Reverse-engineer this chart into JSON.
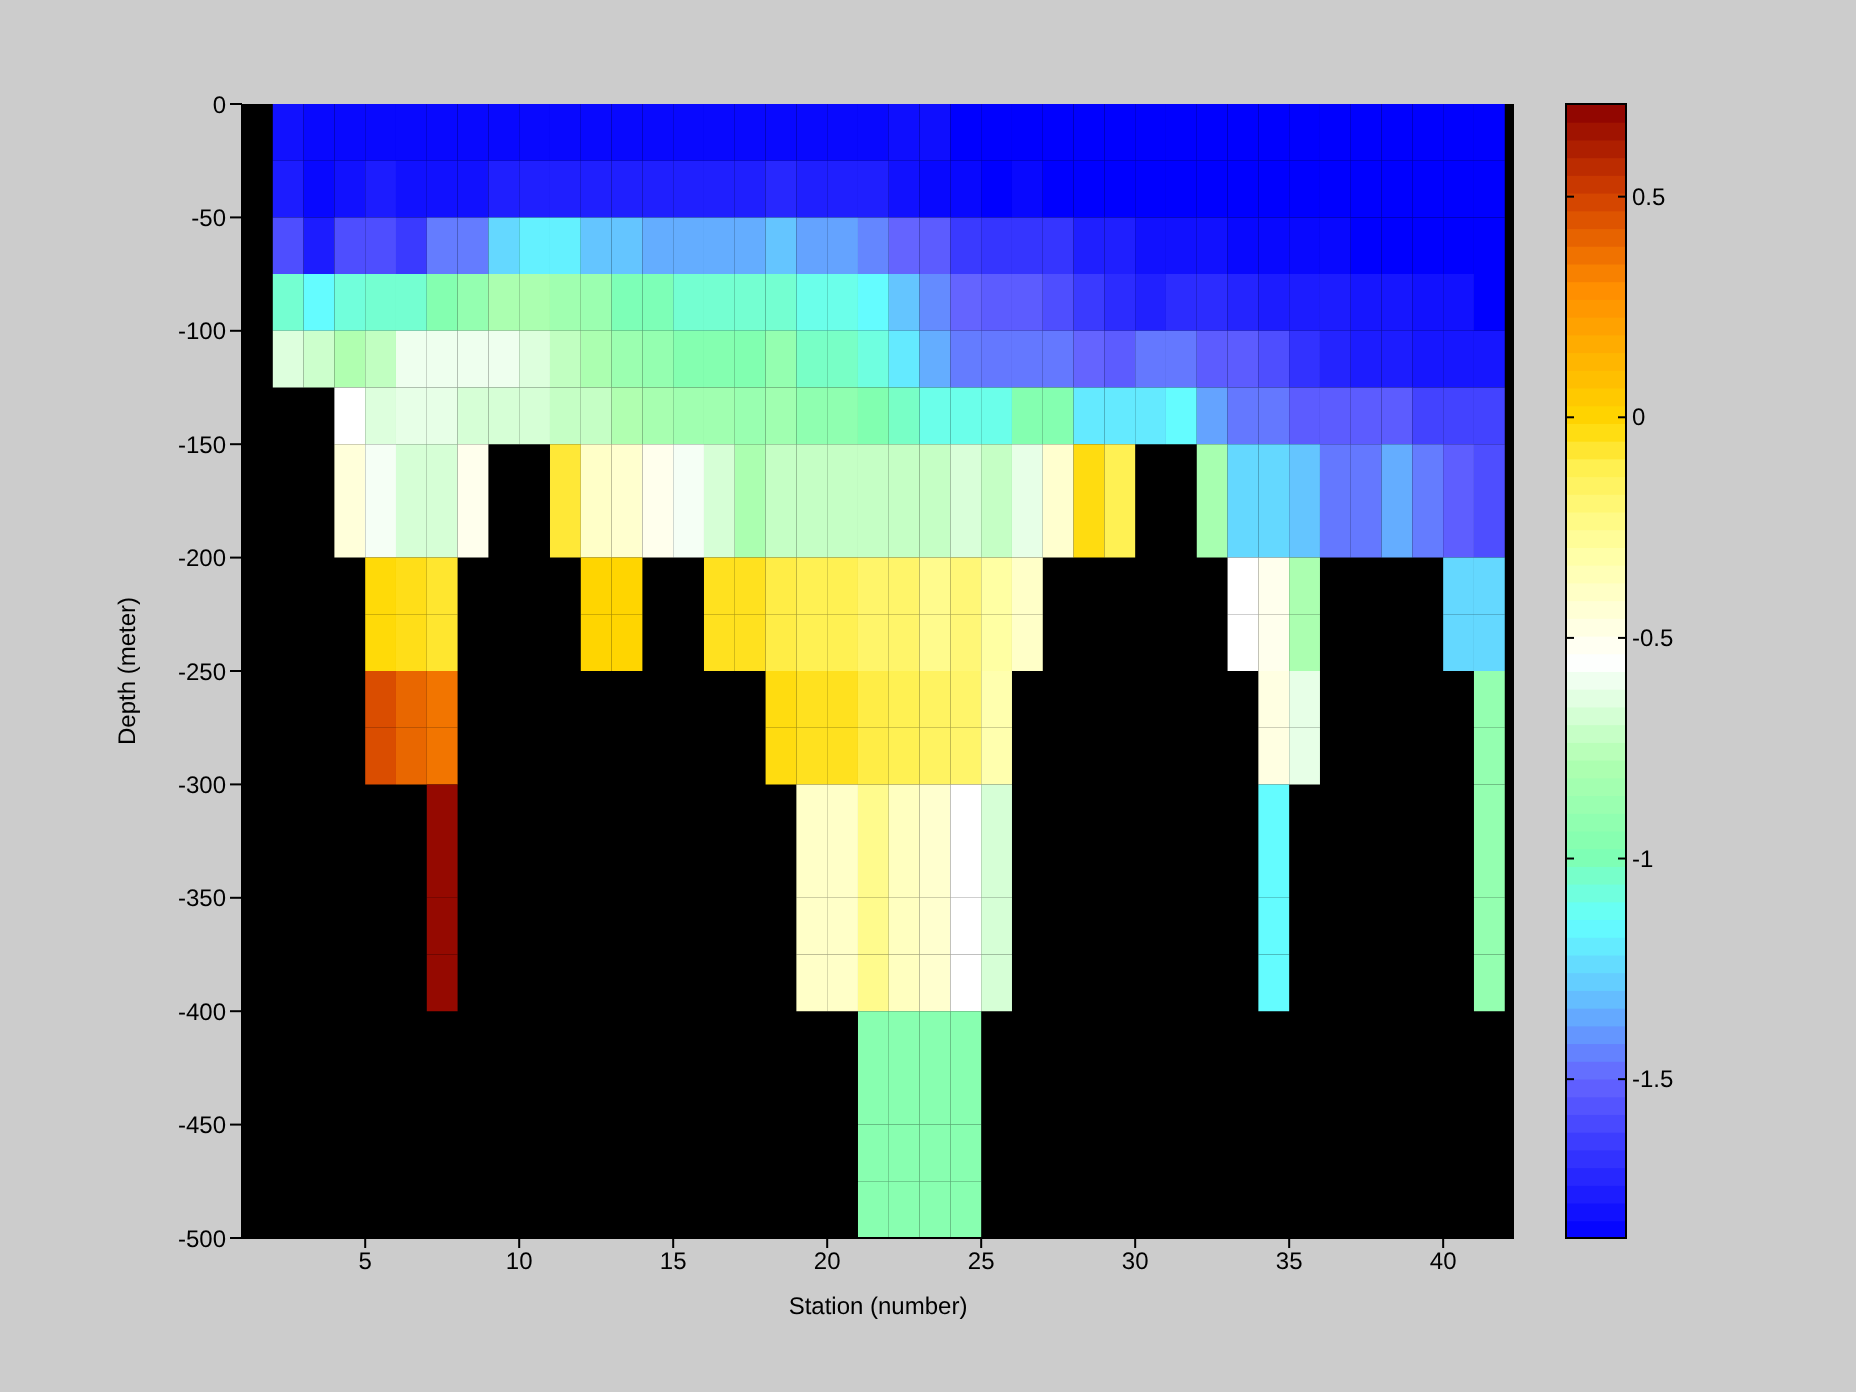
{
  "chart_data": {
    "type": "heatmap",
    "xlabel": "Station (number)",
    "ylabel": "Depth (meter)",
    "x": [
      2.5,
      3.5,
      4.5,
      5.5,
      6.5,
      7.5,
      8.5,
      9.5,
      10.5,
      11.5,
      12.5,
      13.5,
      14.5,
      15.5,
      16.5,
      17.5,
      18.5,
      19.5,
      20.5,
      21.5,
      22.5,
      23.5,
      24.5,
      25.5,
      26.5,
      27.5,
      28.5,
      29.5,
      30.5,
      31.5,
      32.5,
      33.5,
      34.5,
      35.5,
      36.5,
      37.5,
      38.5,
      39.5,
      40.5,
      41.5
    ],
    "xlim": [
      1,
      42.3
    ],
    "xticks": [
      5,
      10,
      15,
      20,
      25,
      30,
      35,
      40
    ],
    "ylim": [
      -500,
      0
    ],
    "yticks": [
      -500,
      -450,
      -400,
      -350,
      -300,
      -250,
      -200,
      -150,
      -100,
      -50,
      0
    ],
    "clim": [
      -1.86,
      0.71
    ],
    "cticks": [
      -1.5,
      -1,
      -0.5,
      0,
      0.5
    ],
    "cells": [
      [
        -1.8,
        -1.83,
        -1.83,
        -1.83,
        -1.83,
        -1.83,
        -1.83,
        -1.83,
        -1.83,
        -1.83,
        -1.83,
        -1.83,
        -1.83,
        -1.83,
        -1.83,
        -1.83,
        -1.83,
        -1.83,
        -1.83,
        -1.83,
        -1.81,
        -1.81,
        -1.86,
        -1.86,
        -1.86,
        -1.86,
        -1.86,
        -1.86,
        -1.86,
        -1.86,
        -1.86,
        -1.86,
        -1.86,
        -1.86,
        -1.86,
        -1.86,
        -1.86,
        -1.86,
        -1.86,
        -1.86
      ],
      [
        -1.76,
        -1.83,
        -1.8,
        -1.76,
        -1.8,
        -1.8,
        -1.8,
        -1.75,
        -1.75,
        -1.75,
        -1.75,
        -1.75,
        -1.75,
        -1.75,
        -1.75,
        -1.75,
        -1.72,
        -1.75,
        -1.75,
        -1.75,
        -1.8,
        -1.83,
        -1.83,
        -1.86,
        -1.83,
        -1.86,
        -1.86,
        -1.86,
        -1.86,
        -1.86,
        -1.86,
        -1.86,
        -1.86,
        -1.86,
        -1.86,
        -1.86,
        -1.86,
        -1.86,
        -1.86,
        -1.86
      ],
      [
        -1.58,
        -1.76,
        -1.58,
        -1.58,
        -1.65,
        -1.45,
        -1.45,
        -1.25,
        -1.18,
        -1.18,
        -1.3,
        -1.3,
        -1.35,
        -1.35,
        -1.35,
        -1.35,
        -1.3,
        -1.37,
        -1.37,
        -1.43,
        -1.5,
        -1.53,
        -1.65,
        -1.67,
        -1.67,
        -1.67,
        -1.75,
        -1.75,
        -1.8,
        -1.8,
        -1.8,
        -1.83,
        -1.83,
        -1.83,
        -1.83,
        -1.86,
        -1.86,
        -1.86,
        -1.86,
        -1.86
      ],
      [
        -1.05,
        -1.15,
        -1.07,
        -1.05,
        -1.05,
        -0.97,
        -0.9,
        -0.8,
        -0.8,
        -0.85,
        -0.87,
        -1,
        -1,
        -1.05,
        -1.05,
        -1.05,
        -1.05,
        -1.1,
        -1.1,
        -1.15,
        -1.3,
        -1.42,
        -1.5,
        -1.53,
        -1.53,
        -1.58,
        -1.65,
        -1.7,
        -1.74,
        -1.7,
        -1.7,
        -1.73,
        -1.76,
        -1.76,
        -1.76,
        -1.78,
        -1.78,
        -1.8,
        -1.8,
        -1.86
      ],
      [
        -0.65,
        -0.7,
        -0.78,
        -0.73,
        -0.6,
        -0.6,
        -0.6,
        -0.6,
        -0.65,
        -0.73,
        -0.8,
        -0.87,
        -0.9,
        -0.97,
        -0.97,
        -0.98,
        -0.9,
        -1.03,
        -1.03,
        -1.08,
        -1.2,
        -1.35,
        -1.45,
        -1.46,
        -1.46,
        -1.46,
        -1.5,
        -1.53,
        -1.46,
        -1.46,
        -1.53,
        -1.53,
        -1.58,
        -1.68,
        -1.73,
        -1.76,
        -1.76,
        -1.78,
        -1.78,
        -1.78
      ],
      [
        null,
        null,
        -0.55,
        -0.65,
        -0.62,
        -0.62,
        -0.67,
        -0.67,
        -0.67,
        -0.72,
        -0.72,
        -0.78,
        -0.82,
        -0.85,
        -0.85,
        -0.88,
        -0.85,
        -0.92,
        -0.92,
        -0.98,
        -1.03,
        -1.1,
        -1.1,
        -1.1,
        -0.97,
        -0.97,
        -1.2,
        -1.2,
        -1.2,
        -1.15,
        -1.37,
        -1.46,
        -1.46,
        -1.53,
        -1.53,
        -1.53,
        -1.53,
        -1.62,
        -1.62,
        -1.62
      ],
      [
        null,
        null,
        -0.45,
        -0.58,
        -0.67,
        -0.67,
        -0.5,
        null,
        null,
        -0.08,
        -0.4,
        -0.42,
        -0.5,
        -0.58,
        -0.67,
        -0.8,
        -0.72,
        -0.72,
        -0.72,
        -0.72,
        -0.72,
        -0.72,
        -0.66,
        -0.72,
        -0.62,
        -0.42,
        -0.03,
        -0.12,
        null,
        null,
        -0.82,
        -1.25,
        -1.25,
        -1.3,
        -1.46,
        -1.46,
        -1.35,
        -1.45,
        -1.52,
        -1.58
      ],
      [
        null,
        null,
        -0.45,
        -0.58,
        -0.67,
        -0.67,
        -0.5,
        null,
        null,
        -0.08,
        -0.4,
        -0.42,
        -0.5,
        -0.58,
        -0.67,
        -0.8,
        -0.72,
        -0.72,
        -0.72,
        -0.72,
        -0.72,
        -0.72,
        -0.66,
        -0.72,
        -0.62,
        -0.42,
        -0.03,
        -0.12,
        null,
        null,
        -0.82,
        -1.25,
        -1.25,
        -1.3,
        -1.46,
        -1.46,
        -1.35,
        -1.45,
        -1.52,
        -1.58
      ],
      [
        null,
        null,
        null,
        -0.02,
        -0.04,
        -0.07,
        null,
        null,
        null,
        null,
        0,
        0,
        null,
        null,
        -0.05,
        -0.05,
        -0.1,
        -0.12,
        -0.12,
        -0.17,
        -0.17,
        -0.25,
        -0.2,
        -0.3,
        -0.4,
        null,
        null,
        null,
        null,
        null,
        null,
        -0.55,
        -0.5,
        -0.8,
        null,
        null,
        null,
        null,
        -1.25,
        -1.25
      ],
      [
        null,
        null,
        null,
        -0.02,
        -0.04,
        -0.07,
        null,
        null,
        null,
        null,
        0,
        0,
        null,
        null,
        -0.05,
        -0.05,
        -0.1,
        -0.12,
        -0.12,
        -0.17,
        -0.17,
        -0.25,
        -0.2,
        -0.3,
        -0.4,
        null,
        null,
        null,
        null,
        null,
        null,
        -0.55,
        -0.5,
        -0.8,
        null,
        null,
        null,
        null,
        -1.25,
        -1.25
      ],
      [
        null,
        null,
        null,
        0.47,
        0.4,
        0.36,
        null,
        null,
        null,
        null,
        null,
        null,
        null,
        null,
        null,
        null,
        -0.03,
        -0.05,
        -0.05,
        -0.1,
        -0.12,
        -0.15,
        -0.17,
        -0.33,
        null,
        null,
        null,
        null,
        null,
        null,
        null,
        null,
        -0.47,
        -0.62,
        null,
        null,
        null,
        null,
        null,
        -0.9
      ],
      [
        null,
        null,
        null,
        0.47,
        0.4,
        0.36,
        null,
        null,
        null,
        null,
        null,
        null,
        null,
        null,
        null,
        null,
        -0.03,
        -0.05,
        -0.05,
        -0.1,
        -0.12,
        -0.15,
        -0.17,
        -0.33,
        null,
        null,
        null,
        null,
        null,
        null,
        null,
        null,
        -0.47,
        -0.62,
        null,
        null,
        null,
        null,
        null,
        -0.9
      ],
      [
        null,
        null,
        null,
        null,
        null,
        0.68,
        null,
        null,
        null,
        null,
        null,
        null,
        null,
        null,
        null,
        null,
        null,
        -0.4,
        -0.4,
        -0.25,
        -0.38,
        -0.42,
        -0.55,
        -0.67,
        null,
        null,
        null,
        null,
        null,
        null,
        null,
        null,
        -1.15,
        null,
        null,
        null,
        null,
        null,
        null,
        -0.9
      ],
      [
        null,
        null,
        null,
        null,
        null,
        0.68,
        null,
        null,
        null,
        null,
        null,
        null,
        null,
        null,
        null,
        null,
        null,
        -0.4,
        -0.4,
        -0.25,
        -0.38,
        -0.42,
        -0.55,
        -0.67,
        null,
        null,
        null,
        null,
        null,
        null,
        null,
        null,
        -1.15,
        null,
        null,
        null,
        null,
        null,
        null,
        -0.9
      ],
      [
        null,
        null,
        null,
        null,
        null,
        0.68,
        null,
        null,
        null,
        null,
        null,
        null,
        null,
        null,
        null,
        null,
        null,
        -0.4,
        -0.4,
        -0.25,
        -0.38,
        -0.42,
        -0.55,
        -0.67,
        null,
        null,
        null,
        null,
        null,
        null,
        null,
        null,
        -1.15,
        null,
        null,
        null,
        null,
        null,
        null,
        -0.9
      ],
      [
        null,
        null,
        null,
        null,
        null,
        0.68,
        null,
        null,
        null,
        null,
        null,
        null,
        null,
        null,
        null,
        null,
        null,
        -0.4,
        -0.4,
        -0.25,
        -0.38,
        -0.42,
        -0.55,
        -0.67,
        null,
        null,
        null,
        null,
        null,
        null,
        null,
        null,
        -1.15,
        null,
        null,
        null,
        null,
        null,
        null,
        -0.9
      ],
      [
        null,
        null,
        null,
        null,
        null,
        null,
        null,
        null,
        null,
        null,
        null,
        null,
        null,
        null,
        null,
        null,
        null,
        null,
        null,
        -0.95,
        -0.95,
        -0.95,
        -0.95,
        null,
        null,
        null,
        null,
        null,
        null,
        null,
        null,
        null,
        null,
        null,
        null,
        null,
        null,
        null,
        null,
        null
      ],
      [
        null,
        null,
        null,
        null,
        null,
        null,
        null,
        null,
        null,
        null,
        null,
        null,
        null,
        null,
        null,
        null,
        null,
        null,
        null,
        -0.95,
        -0.95,
        -0.95,
        -0.95,
        null,
        null,
        null,
        null,
        null,
        null,
        null,
        null,
        null,
        null,
        null,
        null,
        null,
        null,
        null,
        null,
        null
      ],
      [
        null,
        null,
        null,
        null,
        null,
        null,
        null,
        null,
        null,
        null,
        null,
        null,
        null,
        null,
        null,
        null,
        null,
        null,
        null,
        -0.95,
        -0.95,
        -0.95,
        -0.95,
        null,
        null,
        null,
        null,
        null,
        null,
        null,
        null,
        null,
        null,
        null,
        null,
        null,
        null,
        null,
        null,
        null
      ],
      [
        null,
        null,
        null,
        null,
        null,
        null,
        null,
        null,
        null,
        null,
        null,
        null,
        null,
        null,
        null,
        null,
        null,
        null,
        null,
        -0.95,
        -0.95,
        -0.95,
        -0.95,
        null,
        null,
        null,
        null,
        null,
        null,
        null,
        null,
        null,
        null,
        null,
        null,
        null,
        null,
        null,
        null,
        null
      ]
    ]
  }
}
